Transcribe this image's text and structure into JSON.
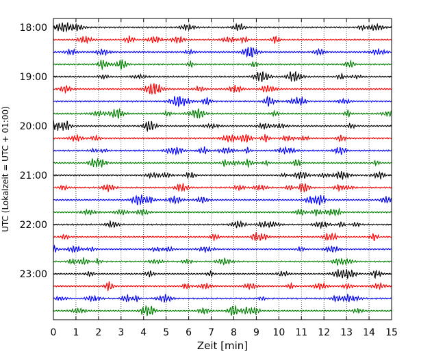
{
  "chart_data": {
    "type": "line",
    "title": "",
    "xlabel": "Zeit  [min]",
    "ylabel": "UTC (Lokalzeit = UTC + 01:00)",
    "xlim": [
      0,
      15
    ],
    "x_ticks": [
      "0",
      "1",
      "2",
      "3",
      "4",
      "5",
      "6",
      "7",
      "8",
      "9",
      "10",
      "11",
      "12",
      "13",
      "14",
      "15"
    ],
    "y_ticks": [
      "18:00",
      "19:00",
      "20:00",
      "21:00",
      "22:00",
      "23:00"
    ],
    "y_tick_rows": [
      0,
      4,
      8,
      12,
      16,
      20
    ],
    "grid": "vertical-dotted",
    "row_minutes": 15,
    "rows_start": "18:00",
    "row_count": 24,
    "row_colors": [
      "#000000",
      "#ff0000",
      "#0000ff",
      "#008000"
    ],
    "series": [
      {
        "start": "18:00",
        "color": "#000000"
      },
      {
        "start": "18:15",
        "color": "#ff0000"
      },
      {
        "start": "18:30",
        "color": "#0000ff"
      },
      {
        "start": "18:45",
        "color": "#008000"
      },
      {
        "start": "19:00",
        "color": "#000000"
      },
      {
        "start": "19:15",
        "color": "#ff0000"
      },
      {
        "start": "19:30",
        "color": "#0000ff"
      },
      {
        "start": "19:45",
        "color": "#008000"
      },
      {
        "start": "20:00",
        "color": "#000000"
      },
      {
        "start": "20:15",
        "color": "#ff0000"
      },
      {
        "start": "20:30",
        "color": "#0000ff"
      },
      {
        "start": "20:45",
        "color": "#008000"
      },
      {
        "start": "21:00",
        "color": "#000000"
      },
      {
        "start": "21:15",
        "color": "#ff0000"
      },
      {
        "start": "21:30",
        "color": "#0000ff"
      },
      {
        "start": "21:45",
        "color": "#008000"
      },
      {
        "start": "22:00",
        "color": "#000000"
      },
      {
        "start": "22:15",
        "color": "#ff0000"
      },
      {
        "start": "22:30",
        "color": "#0000ff"
      },
      {
        "start": "22:45",
        "color": "#008000"
      },
      {
        "start": "23:00",
        "color": "#000000"
      },
      {
        "start": "23:15",
        "color": "#ff0000"
      },
      {
        "start": "23:30",
        "color": "#0000ff"
      },
      {
        "start": "23:45",
        "color": "#008000"
      }
    ]
  }
}
